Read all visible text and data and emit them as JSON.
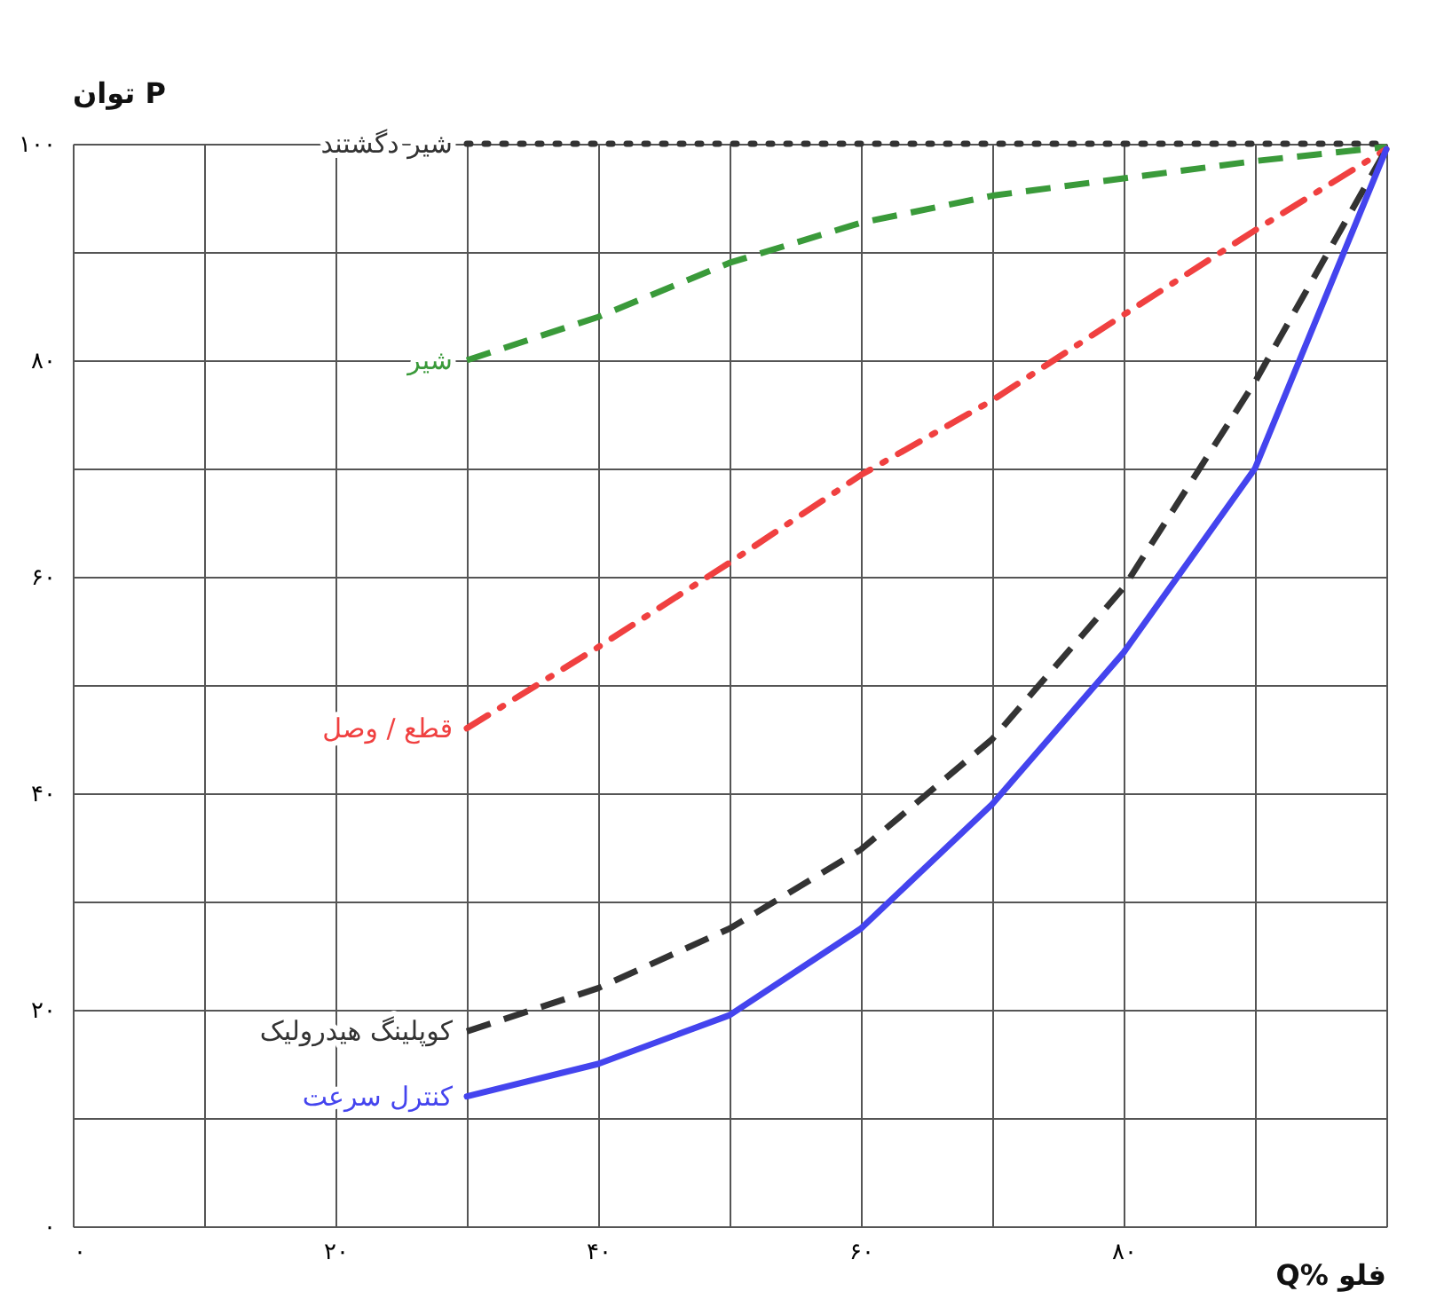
{
  "chart_data": {
    "type": "line",
    "xlabel": "Q% فلو",
    "ylabel": "توان P",
    "xlim": [
      0,
      100
    ],
    "ylim": [
      0,
      100
    ],
    "xticks": [
      {
        "value": 0,
        "label": "۰"
      },
      {
        "value": 10,
        "label": null
      },
      {
        "value": 20,
        "label": "۲۰"
      },
      {
        "value": 30,
        "label": null
      },
      {
        "value": 40,
        "label": "۴۰"
      },
      {
        "value": 50,
        "label": null
      },
      {
        "value": 60,
        "label": "۶۰"
      },
      {
        "value": 70,
        "label": null
      },
      {
        "value": 80,
        "label": "۸۰"
      },
      {
        "value": 90,
        "label": null
      },
      {
        "value": 100,
        "label": null
      }
    ],
    "yticks": [
      {
        "value": 0,
        "label": "۰"
      },
      {
        "value": 10,
        "label": null
      },
      {
        "value": 20,
        "label": "۲۰"
      },
      {
        "value": 30,
        "label": null
      },
      {
        "value": 40,
        "label": "۴۰"
      },
      {
        "value": 50,
        "label": null
      },
      {
        "value": 60,
        "label": "۶۰"
      },
      {
        "value": 70,
        "label": null
      },
      {
        "value": 80,
        "label": "۸۰"
      },
      {
        "value": 90,
        "label": null
      },
      {
        "value": 100,
        "label": "۱۰۰"
      }
    ],
    "grid": true,
    "marker": "none",
    "series": [
      {
        "name": "شیر دگشتند",
        "color": "#333333",
        "line_style": "dotted",
        "x": [
          30,
          100
        ],
        "values": [
          100,
          100
        ]
      },
      {
        "name": "شیر",
        "color": "#3a9a3a",
        "line_style": "dashed",
        "x": [
          30,
          40,
          50,
          60,
          70,
          80,
          90,
          100
        ],
        "values": [
          80,
          84,
          89,
          92.7,
          95.2,
          96.8,
          98.4,
          99.7
        ]
      },
      {
        "name": "قطع / وصل",
        "color": "#f04040",
        "line_style": "dashdot",
        "x": [
          30,
          40,
          50,
          60,
          70,
          80,
          90,
          100
        ],
        "values": [
          46,
          53.5,
          61.3,
          69.4,
          76.3,
          84.2,
          92,
          99.5
        ]
      },
      {
        "name": "کوپلینگ هیدرولیک",
        "color": "#333333",
        "line_style": "dashed",
        "x": [
          30,
          40,
          50,
          60,
          70,
          80,
          90,
          100
        ],
        "values": [
          18,
          22,
          27.5,
          34.8,
          45,
          59,
          78,
          99.5
        ]
      },
      {
        "name": "کنترل سرعت",
        "color": "#4444ee",
        "line_style": "solid",
        "x": [
          30,
          40,
          50,
          60,
          70,
          80,
          90,
          100
        ],
        "values": [
          12,
          15,
          19.5,
          27.5,
          39,
          53,
          70,
          99.5
        ]
      }
    ]
  }
}
